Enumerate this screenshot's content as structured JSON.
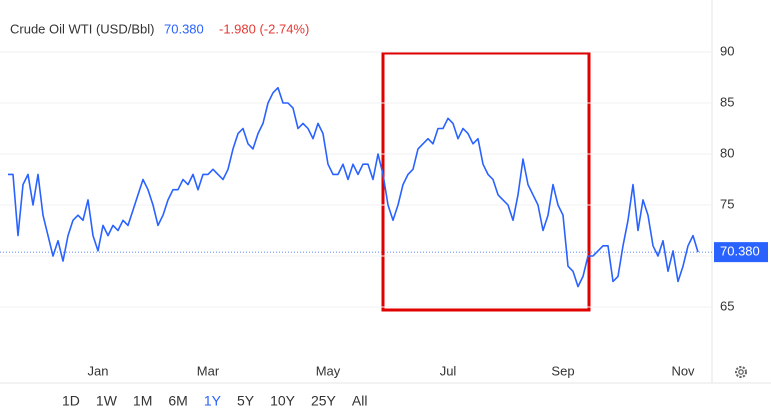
{
  "header": {
    "name": "Crude Oil WTI (USD/Bbl)",
    "price": "70.380",
    "change": "-1.980 (-2.74%)"
  },
  "chart_data": {
    "type": "line",
    "color": "#2962ff",
    "grid": true,
    "categories": [
      null,
      null,
      null,
      null,
      null,
      null,
      null,
      null,
      null,
      null,
      null,
      null,
      null,
      null,
      null,
      null,
      null,
      null,
      "Jan",
      null,
      null,
      null,
      null,
      null,
      null,
      null,
      null,
      null,
      null,
      null,
      null,
      null,
      null,
      null,
      null,
      null,
      null,
      null,
      null,
      null,
      "Mar",
      null,
      null,
      null,
      null,
      null,
      null,
      null,
      null,
      null,
      null,
      null,
      null,
      null,
      null,
      null,
      null,
      null,
      null,
      null,
      null,
      null,
      null,
      null,
      "May",
      null,
      null,
      null,
      null,
      null,
      null,
      null,
      null,
      null,
      null,
      null,
      null,
      null,
      null,
      null,
      null,
      null,
      null,
      null,
      null,
      null,
      null,
      null,
      "Jul",
      null,
      null,
      null,
      null,
      null,
      null,
      null,
      null,
      null,
      null,
      null,
      null,
      null,
      null,
      null,
      null,
      null,
      null,
      null,
      null,
      null,
      null,
      "Sep",
      null,
      null,
      null,
      null,
      null,
      null,
      null,
      null,
      null,
      null,
      null,
      null,
      null,
      null,
      null,
      null,
      null,
      null,
      null,
      null,
      null,
      null,
      null,
      "Nov",
      null,
      null,
      null
    ],
    "values": [
      78,
      78,
      72,
      77,
      78,
      75,
      78,
      74,
      72,
      70,
      71.5,
      69.5,
      72,
      73.5,
      74,
      73.5,
      75.5,
      72,
      70.5,
      73,
      72,
      73,
      72.5,
      73.5,
      73,
      74.5,
      76,
      77.5,
      76.5,
      75,
      73,
      74,
      75.5,
      76.5,
      76.5,
      77.5,
      77,
      78,
      76.5,
      78,
      78,
      78.5,
      78,
      77.5,
      78.5,
      80.5,
      82,
      82.5,
      81,
      80.5,
      82,
      83,
      85,
      86,
      86.5,
      85,
      85,
      84.5,
      82.5,
      83,
      82.5,
      81.5,
      83,
      82,
      79,
      78,
      78,
      79,
      77.5,
      79,
      78,
      79,
      79,
      77.5,
      80,
      78,
      75,
      73.5,
      75,
      77,
      78,
      78.5,
      80.5,
      81,
      81.5,
      81,
      82.5,
      82.5,
      83.5,
      83,
      81.5,
      82.5,
      82,
      81,
      81.5,
      79,
      78,
      77.5,
      76,
      75.5,
      75,
      73.5,
      76,
      79.5,
      77,
      76,
      75,
      72.5,
      74,
      77,
      75,
      74,
      69,
      68.5,
      67,
      68,
      70,
      70,
      70.5,
      71,
      71,
      67.5,
      68,
      71,
      73.5,
      77,
      72.5,
      75.5,
      74,
      71,
      70,
      71.5,
      68.5,
      70.5,
      67.5,
      69,
      71,
      72,
      70.38
    ],
    "ylim": [
      60,
      95
    ],
    "yticks": [
      65,
      70,
      75,
      80,
      85,
      90
    ]
  },
  "ranges": [
    "1D",
    "1W",
    "1M",
    "6M",
    "1Y",
    "5Y",
    "10Y",
    "25Y",
    "All"
  ],
  "active_range": 4
}
